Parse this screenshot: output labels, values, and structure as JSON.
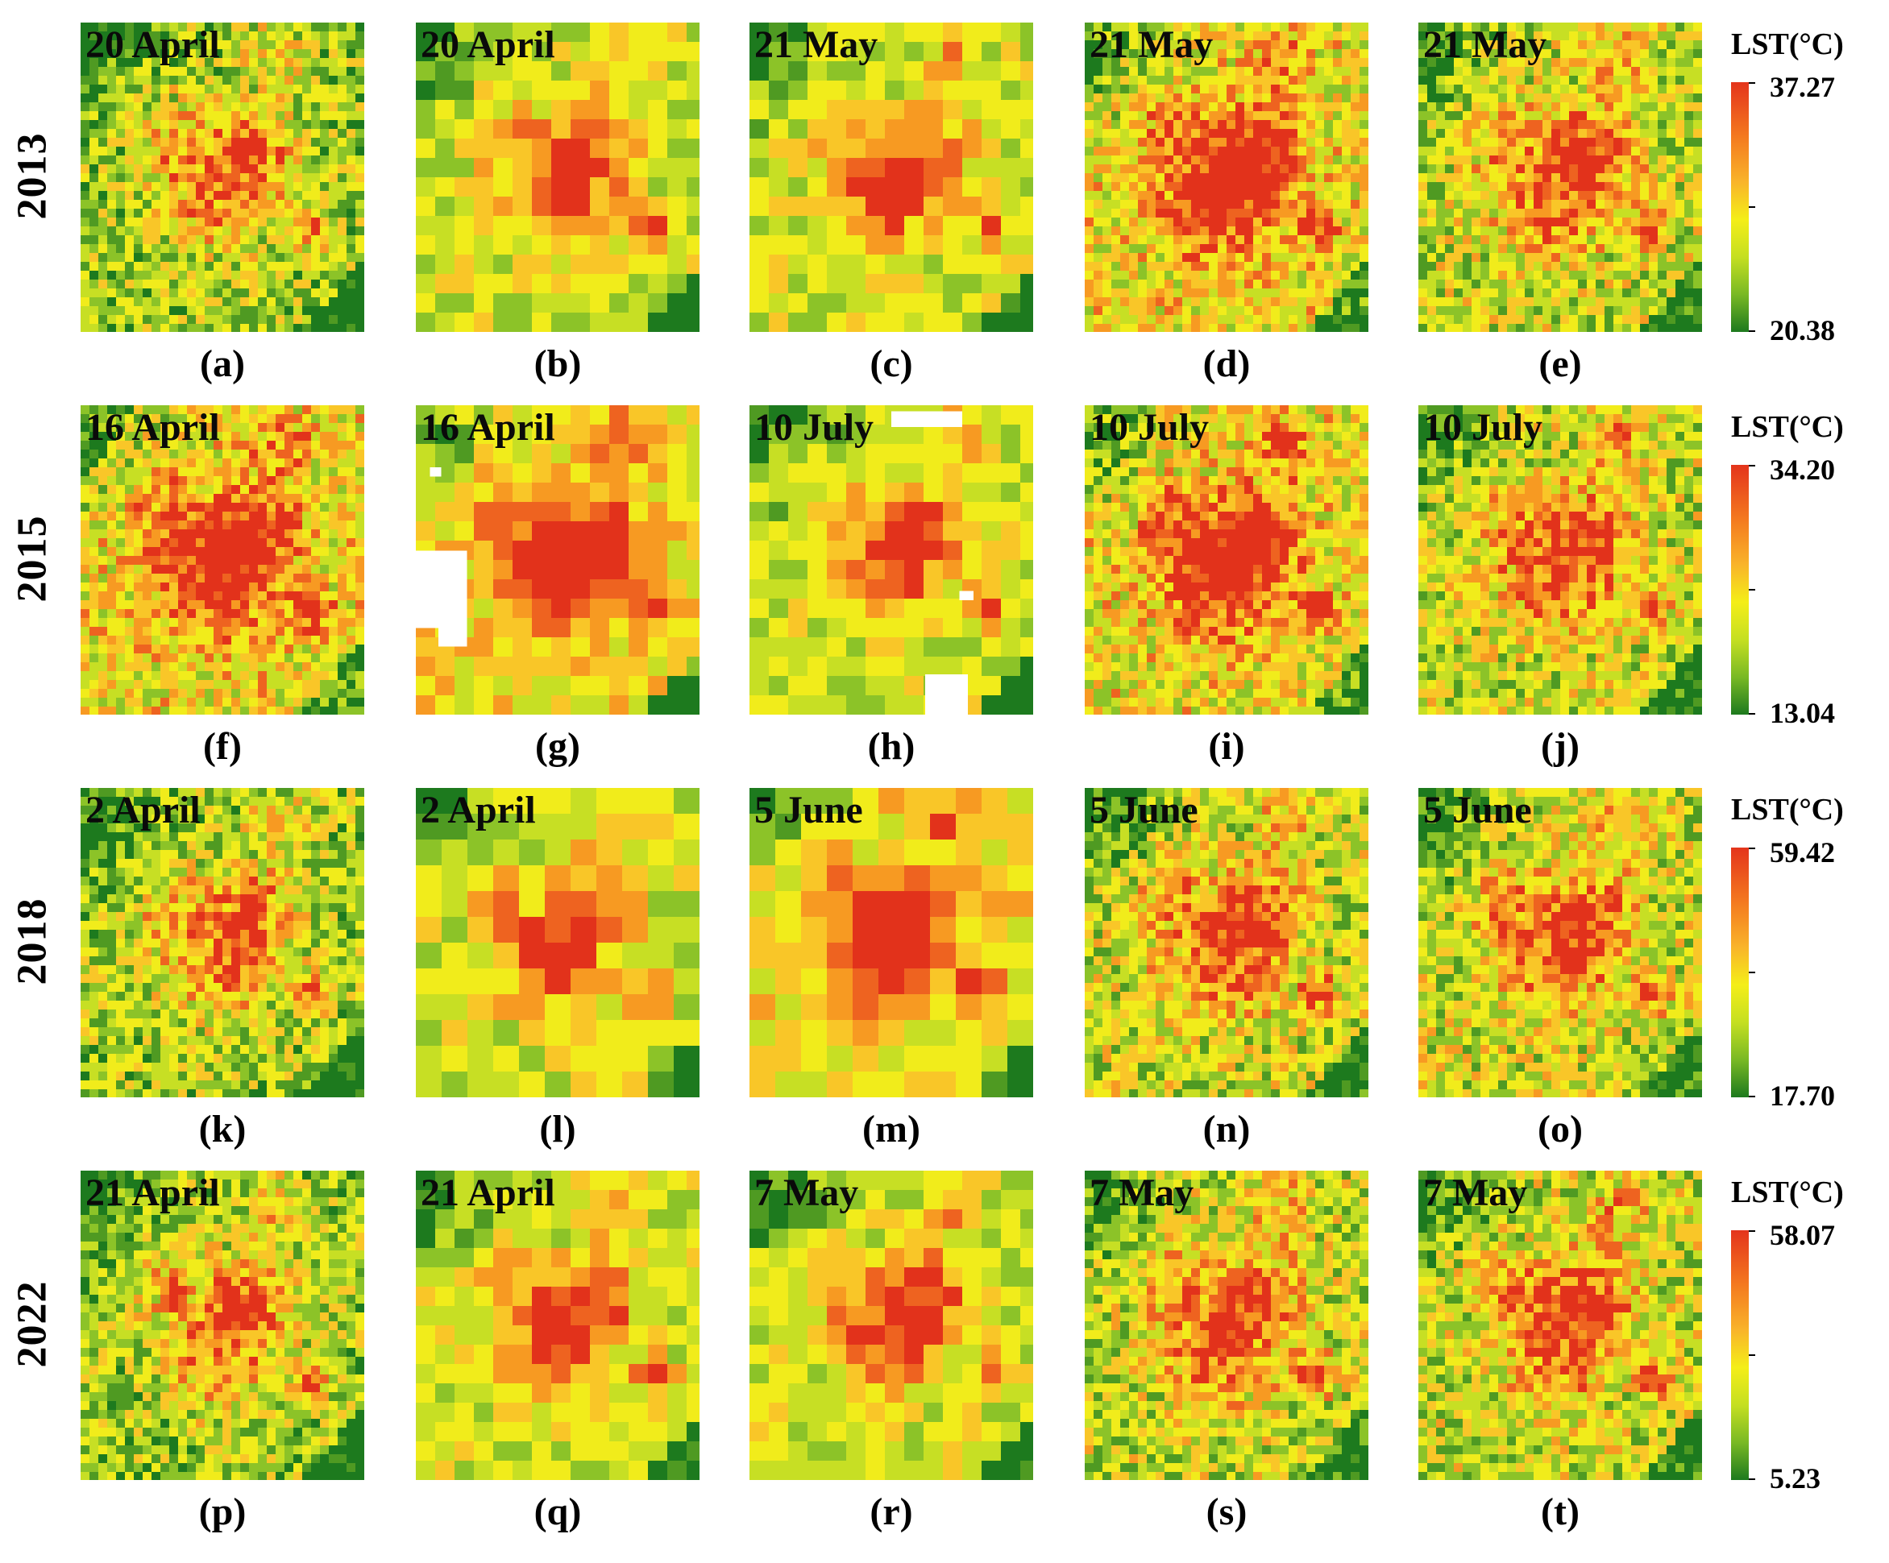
{
  "figure": {
    "rows": [
      {
        "year": "2013",
        "legend": {
          "title": "LST(°C)",
          "max": "37.27",
          "min": "20.38"
        },
        "panels": [
          {
            "date": "20 April",
            "letter": "(a)",
            "style": "fine-a"
          },
          {
            "date": "20 April",
            "letter": "(b)",
            "style": "coarse"
          },
          {
            "date": "21 May",
            "letter": "(c)",
            "style": "coarse"
          },
          {
            "date": "21 May",
            "letter": "(d)",
            "style": "fine-hot"
          },
          {
            "date": "21 May",
            "letter": "(e)",
            "style": "fine"
          }
        ]
      },
      {
        "year": "2015",
        "legend": {
          "title": "LST(°C)",
          "max": "34.20",
          "min": "13.04"
        },
        "panels": [
          {
            "date": "16 April",
            "letter": "(f)",
            "style": "fine-hot"
          },
          {
            "date": "16 April",
            "letter": "(g)",
            "style": "coarse-hot-gaps"
          },
          {
            "date": "10 July",
            "letter": "(h)",
            "style": "coarse-gaps"
          },
          {
            "date": "10 July",
            "letter": "(i)",
            "style": "fine-hot"
          },
          {
            "date": "10 July",
            "letter": "(j)",
            "style": "fine"
          }
        ]
      },
      {
        "year": "2018",
        "legend": {
          "title": "LST(°C)",
          "max": "59.42",
          "min": "17.70"
        },
        "panels": [
          {
            "date": "2 April",
            "letter": "(k)",
            "style": "fine-a"
          },
          {
            "date": "2 April",
            "letter": "(l)",
            "style": "coarse-big"
          },
          {
            "date": "5 June",
            "letter": "(m)",
            "style": "coarse-big-hot"
          },
          {
            "date": "5 June",
            "letter": "(n)",
            "style": "fine"
          },
          {
            "date": "5 June",
            "letter": "(o)",
            "style": "fine"
          }
        ]
      },
      {
        "year": "2022",
        "legend": {
          "title": "LST(°C)",
          "max": "58.07",
          "min": "5.23"
        },
        "panels": [
          {
            "date": "21 April",
            "letter": "(p)",
            "style": "fine-a"
          },
          {
            "date": "21 April",
            "letter": "(q)",
            "style": "coarse"
          },
          {
            "date": "7 May",
            "letter": "(r)",
            "style": "coarse"
          },
          {
            "date": "7 May",
            "letter": "(s)",
            "style": "fine"
          },
          {
            "date": "7 May",
            "letter": "(t)",
            "style": "fine"
          }
        ]
      }
    ],
    "colormap": [
      "#1d7a1e",
      "#4f9a22",
      "#8cc328",
      "#c7df24",
      "#f1ec1b",
      "#f9c628",
      "#f79a22",
      "#ee6320",
      "#e2321b"
    ]
  }
}
